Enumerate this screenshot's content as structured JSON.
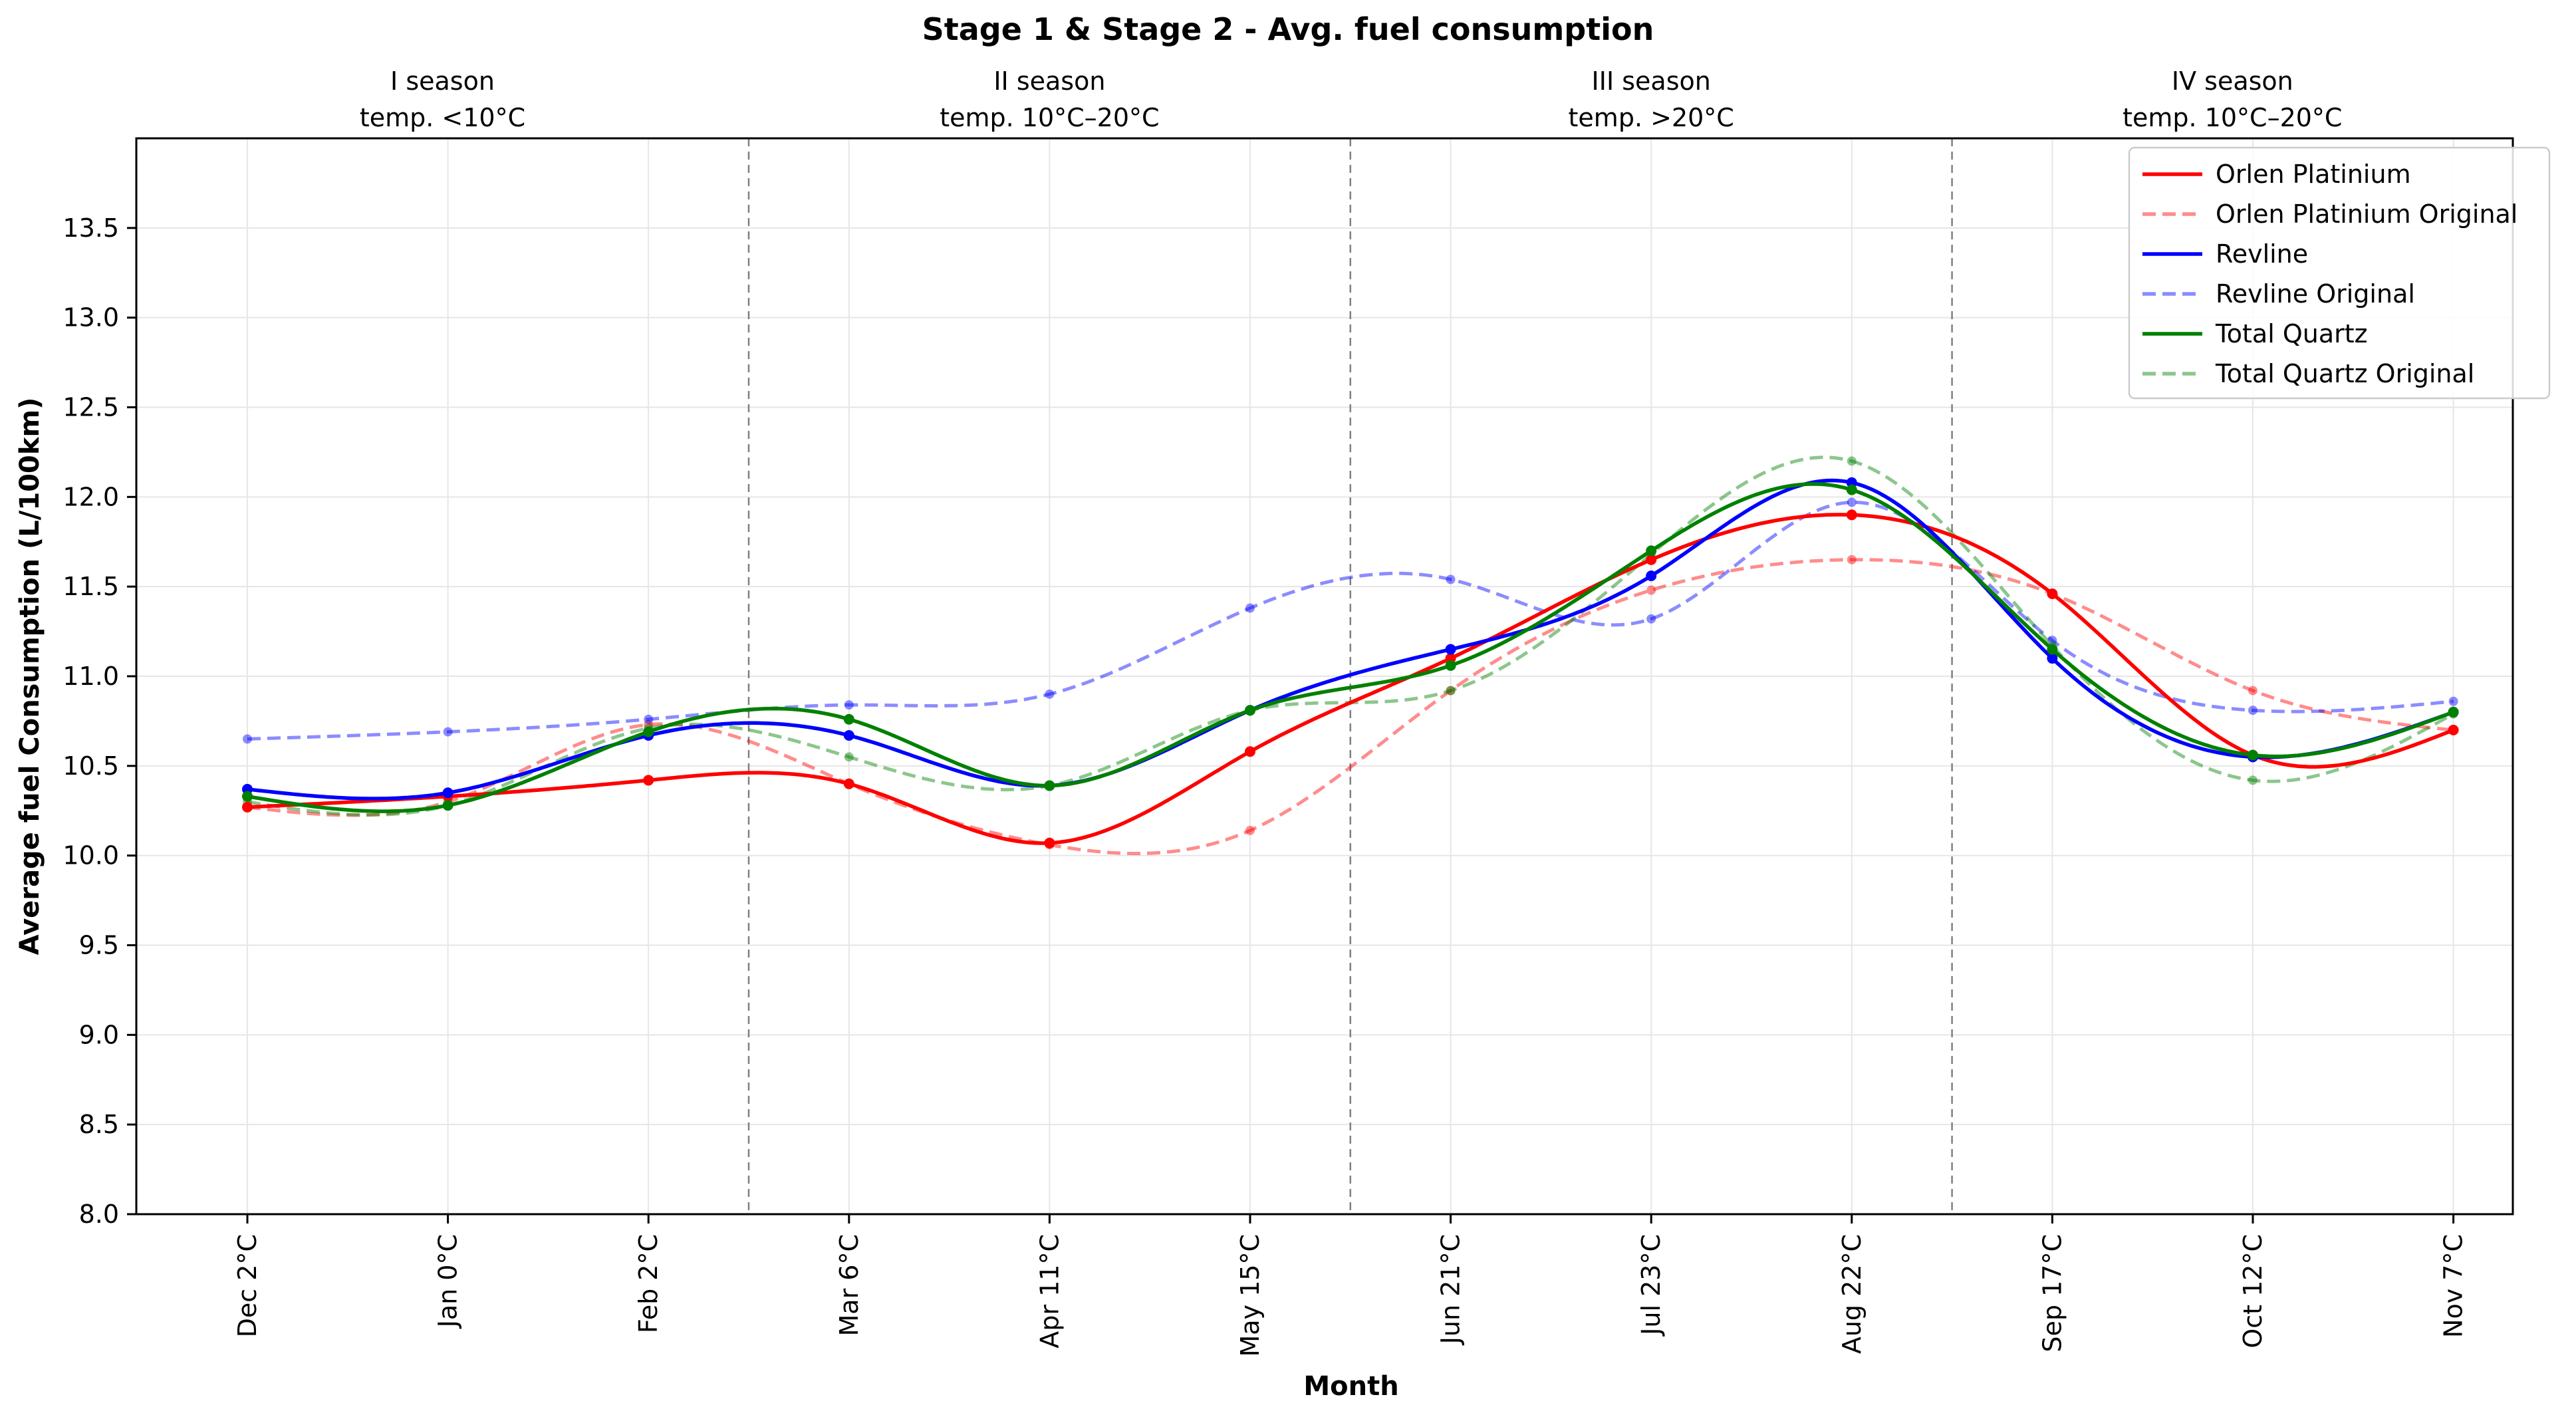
{
  "chart_data": {
    "type": "line",
    "title": "Stage 1 & Stage 2 - Avg. fuel consumption",
    "xlabel": "Month",
    "ylabel": "Average fuel Consumption (L/100km)",
    "ylim": [
      8.0,
      14.0
    ],
    "yticks": [
      "8.0",
      "8.5",
      "9.0",
      "9.5",
      "10.0",
      "10.5",
      "11.0",
      "11.5",
      "12.0",
      "12.5",
      "13.0",
      "13.5"
    ],
    "grid": true,
    "legend_position": "top-right",
    "categories": [
      "Dec 2°C",
      "Jan 0°C",
      "Feb 2°C",
      "Mar 6°C",
      "Apr 11°C",
      "May 15°C",
      "Jun 21°C",
      "Jul 23°C",
      "Aug 22°C",
      "Sep 17°C",
      "Oct 12°C",
      "Nov 7°C"
    ],
    "season_separators_after_index": [
      2.5,
      5.5,
      8.5
    ],
    "seasons": [
      {
        "name": "I season",
        "temp": "temp. <10°C"
      },
      {
        "name": "II season",
        "temp": "temp. 10°C–20°C"
      },
      {
        "name": "III season",
        "temp": "temp. >20°C"
      },
      {
        "name": "IV season",
        "temp": "temp. 10°C–20°C"
      }
    ],
    "series": [
      {
        "name": "Orlen Platinium",
        "color": "#ff0000",
        "style": "solid",
        "values": [
          10.27,
          10.33,
          10.42,
          10.4,
          10.07,
          10.58,
          11.1,
          11.65,
          11.9,
          11.46,
          10.56,
          10.7
        ]
      },
      {
        "name": "Orlen Platinium Original",
        "color": "#ff0000",
        "style": "dashed",
        "values": [
          10.27,
          10.3,
          10.73,
          10.4,
          10.06,
          10.14,
          10.92,
          11.48,
          11.65,
          11.46,
          10.92,
          10.7
        ]
      },
      {
        "name": "Revline",
        "color": "#0000ff",
        "style": "solid",
        "values": [
          10.37,
          10.35,
          10.67,
          10.67,
          10.39,
          10.81,
          11.15,
          11.56,
          12.08,
          11.1,
          10.55,
          10.8
        ]
      },
      {
        "name": "Revline Original",
        "color": "#0000ff",
        "style": "dashed",
        "values": [
          10.65,
          10.69,
          10.76,
          10.84,
          10.9,
          11.38,
          11.54,
          11.32,
          11.97,
          11.2,
          10.81,
          10.86
        ]
      },
      {
        "name": "Total Quartz",
        "color": "#008000",
        "style": "solid",
        "values": [
          10.33,
          10.28,
          10.69,
          10.76,
          10.39,
          10.81,
          11.06,
          11.7,
          12.04,
          11.15,
          10.56,
          10.8
        ]
      },
      {
        "name": "Total Quartz Original",
        "color": "#008000",
        "style": "dashed",
        "values": [
          10.3,
          10.28,
          10.71,
          10.55,
          10.39,
          10.81,
          10.92,
          11.68,
          12.2,
          11.17,
          10.42,
          10.79
        ]
      }
    ]
  }
}
